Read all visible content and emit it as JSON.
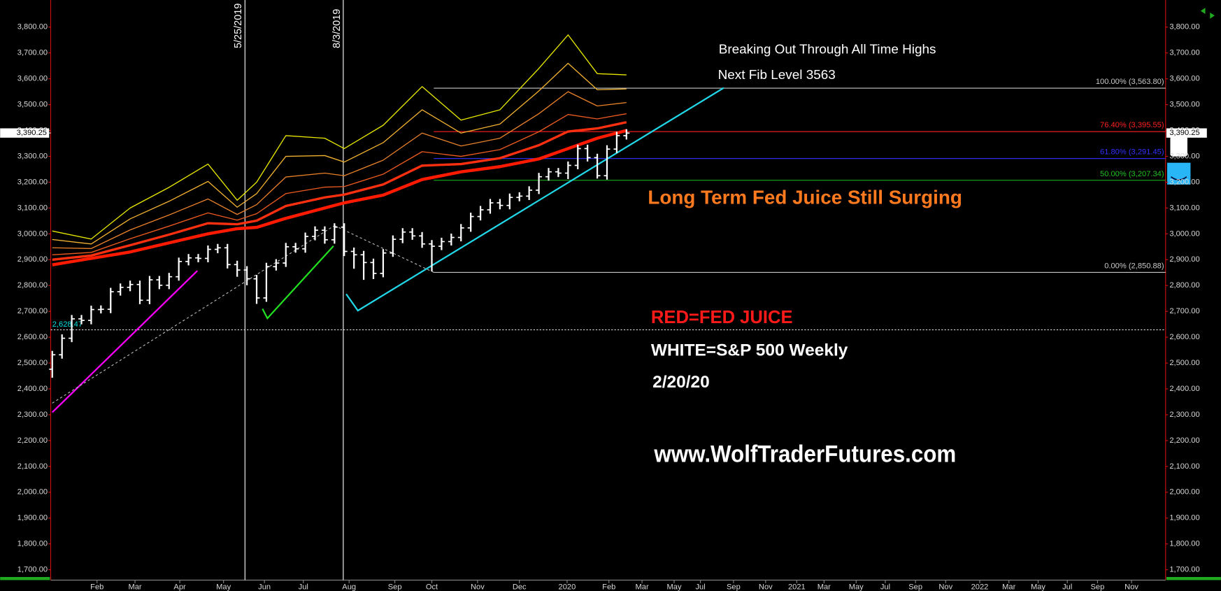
{
  "chart_data": {
    "type": "ohlc",
    "bar_color": "#ffffff",
    "x": [
      0,
      1,
      2,
      3,
      4,
      5,
      6,
      7,
      8,
      9,
      10,
      11,
      12,
      13,
      14,
      15,
      16,
      17,
      18,
      19,
      20,
      21,
      22,
      23,
      24,
      25,
      26,
      27,
      28,
      29,
      30,
      31,
      32,
      33,
      34,
      35,
      36,
      37,
      38,
      39,
      40,
      41,
      42,
      43,
      44,
      45,
      46,
      47,
      48,
      49,
      50,
      51,
      52,
      53,
      54,
      55,
      56,
      57,
      58,
      59
    ],
    "open": [
      2476,
      2532,
      2596,
      2671,
      2665,
      2707,
      2708,
      2776,
      2793,
      2804,
      2743,
      2822,
      2801,
      2834,
      2893,
      2907,
      2905,
      2940,
      2946,
      2881,
      2860,
      2826,
      2752,
      2873,
      2887,
      2950,
      2942,
      2990,
      3014,
      2977,
      3026,
      2932,
      2919,
      2889,
      2847,
      2926,
      2979,
      3007,
      2992,
      2961,
      2952,
      2970,
      2986,
      3023,
      3067,
      3093,
      3120,
      3110,
      3141,
      3146,
      3169,
      3221,
      3240,
      3235,
      3265,
      3330,
      3295,
      3225,
      3328,
      3380
    ],
    "high": [
      2547,
      2611,
      2686,
      2686,
      2722,
      2723,
      2791,
      2808,
      2819,
      2819,
      2837,
      2837,
      2849,
      2908,
      2922,
      2922,
      2955,
      2961,
      2961,
      2896,
      2875,
      2841,
      2888,
      2902,
      2965,
      2965,
      3005,
      3029,
      3029,
      3041,
      3041,
      2947,
      2934,
      2904,
      2941,
      2994,
      3022,
      3022,
      3007,
      2976,
      2985,
      3001,
      3038,
      3082,
      3108,
      3135,
      3135,
      3156,
      3161,
      3184,
      3236,
      3255,
      3255,
      3280,
      3345,
      3345,
      3310,
      3343,
      3395,
      3405
    ],
    "low": [
      2443,
      2517,
      2581,
      2650,
      2650,
      2692,
      2693,
      2761,
      2778,
      2728,
      2728,
      2786,
      2786,
      2819,
      2878,
      2890,
      2890,
      2925,
      2866,
      2834,
      2801,
      2729,
      2737,
      2858,
      2872,
      2927,
      2927,
      2975,
      2962,
      2962,
      2914,
      2865,
      2822,
      2825,
      2832,
      2911,
      2964,
      2977,
      2946,
      2855,
      2937,
      2955,
      2971,
      3008,
      3052,
      3078,
      3095,
      3095,
      3126,
      3131,
      3154,
      3206,
      3220,
      3212,
      3250,
      3280,
      3214,
      3210,
      3313,
      3365
    ],
    "close": [
      2532,
      2596,
      2671,
      2665,
      2707,
      2708,
      2776,
      2793,
      2804,
      2743,
      2822,
      2801,
      2834,
      2893,
      2907,
      2905,
      2940,
      2946,
      2881,
      2860,
      2826,
      2752,
      2873,
      2887,
      2950,
      2942,
      2990,
      3014,
      2977,
      3026,
      2932,
      2919,
      2889,
      2847,
      2926,
      2979,
      3007,
      2992,
      2961,
      2952,
      2970,
      2986,
      3023,
      3067,
      3093,
      3120,
      3110,
      3141,
      3146,
      3169,
      3221,
      3240,
      3235,
      3265,
      3330,
      3295,
      3225,
      3328,
      3380,
      3390
    ],
    "xlim": [
      -0.16,
      114.4
    ],
    "ylim": [
      1660,
      3905
    ],
    "xticks": [
      {
        "value": 4.6,
        "label": "Feb"
      },
      {
        "value": 8.5,
        "label": "Mar"
      },
      {
        "value": 13.1,
        "label": "Apr"
      },
      {
        "value": 17.6,
        "label": "May"
      },
      {
        "value": 21.8,
        "label": "Jun"
      },
      {
        "value": 25.8,
        "label": "Jul"
      },
      {
        "value": 30.5,
        "label": "Aug"
      },
      {
        "value": 35.2,
        "label": "Sep"
      },
      {
        "value": 39,
        "label": "Oct"
      },
      {
        "value": 43.7,
        "label": "Nov"
      },
      {
        "value": 48,
        "label": "Dec"
      },
      {
        "value": 52.9,
        "label": "2020"
      },
      {
        "value": 57.2,
        "label": "Feb"
      },
      {
        "value": 60.6,
        "label": "Mar"
      },
      {
        "value": 63.9,
        "label": "May"
      },
      {
        "value": 66.6,
        "label": "Jul"
      },
      {
        "value": 70,
        "label": "Sep"
      },
      {
        "value": 73.3,
        "label": "Nov"
      },
      {
        "value": 76.5,
        "label": "2021"
      },
      {
        "value": 79.3,
        "label": "Mar"
      },
      {
        "value": 82.6,
        "label": "May"
      },
      {
        "value": 85.6,
        "label": "Jul"
      },
      {
        "value": 88.7,
        "label": "Sep"
      },
      {
        "value": 91.8,
        "label": "Nov"
      },
      {
        "value": 95.3,
        "label": "2022"
      },
      {
        "value": 98.3,
        "label": "Mar"
      },
      {
        "value": 101.3,
        "label": "May"
      },
      {
        "value": 104.3,
        "label": "Jul"
      },
      {
        "value": 107.4,
        "label": "Sep"
      },
      {
        "value": 110.9,
        "label": "Nov"
      }
    ],
    "yticks": [
      {
        "value": 1700,
        "label": "1,700.00"
      },
      {
        "value": 1800,
        "label": "1,800.00"
      },
      {
        "value": 1900,
        "label": "1,900.00"
      },
      {
        "value": 2000,
        "label": "2,000.00"
      },
      {
        "value": 2100,
        "label": "2,100.00"
      },
      {
        "value": 2200,
        "label": "2,200.00"
      },
      {
        "value": 2300,
        "label": "2,300.00"
      },
      {
        "value": 2400,
        "label": "2,400.00"
      },
      {
        "value": 2500,
        "label": "2,500.00"
      },
      {
        "value": 2600,
        "label": "2,600.00"
      },
      {
        "value": 2700,
        "label": "2,700.00"
      },
      {
        "value": 2800,
        "label": "2,800.00"
      },
      {
        "value": 2900,
        "label": "2,900.00"
      },
      {
        "value": 3000,
        "label": "3,000.00"
      },
      {
        "value": 3100,
        "label": "3,100.00"
      },
      {
        "value": 3200,
        "label": "3,200.00"
      },
      {
        "value": 3300,
        "label": "3,300.00"
      },
      {
        "value": 3400,
        "label": "3,400.00"
      },
      {
        "value": 3500,
        "label": "3,500.00"
      },
      {
        "value": 3600,
        "label": "3,600.00"
      },
      {
        "value": 3700,
        "label": "3,700.00"
      },
      {
        "value": 3800,
        "label": "3,800.00"
      }
    ],
    "ribbon": {
      "x": [
        0,
        4,
        8,
        12,
        16,
        19,
        21,
        24,
        28,
        30,
        34,
        38,
        42,
        46,
        50,
        53,
        56,
        59
      ],
      "series": [
        {
          "color": "#e6e600",
          "values": [
            3011,
            2980,
            3100,
            3180,
            3270,
            3130,
            3200,
            3380,
            3370,
            3330,
            3420,
            3570,
            3440,
            3480,
            3640,
            3770,
            3620,
            3615
          ]
        },
        {
          "color": "#f0b030",
          "values": [
            2978,
            2961,
            3058,
            3126,
            3203,
            3103,
            3156,
            3300,
            3303,
            3278,
            3353,
            3480,
            3390,
            3425,
            3553,
            3660,
            3558,
            3561
          ]
        },
        {
          "color": "#e8802a",
          "values": [
            2946,
            2943,
            3015,
            3073,
            3135,
            3075,
            3113,
            3220,
            3235,
            3225,
            3285,
            3390,
            3340,
            3370,
            3465,
            3550,
            3495,
            3508
          ]
        },
        {
          "color": "#ec5a20",
          "values": [
            2919,
            2928,
            2981,
            3030,
            3081,
            3053,
            3078,
            3156,
            3181,
            3183,
            3231,
            3318,
            3300,
            3326,
            3395,
            3462,
            3445,
            3465
          ]
        },
        {
          "color": "#ff3010",
          "values": [
            2900,
            2916,
            2956,
            2997,
            3041,
            3037,
            3051,
            3108,
            3141,
            3152,
            3191,
            3264,
            3270,
            3293,
            3343,
            3396,
            3408,
            3432
          ]
        },
        {
          "color": "#ff1a00",
          "values": [
            2880,
            2905,
            2930,
            2965,
            3000,
            3020,
            3025,
            3060,
            3100,
            3120,
            3150,
            3210,
            3240,
            3260,
            3290,
            3330,
            3370,
            3400
          ]
        }
      ]
    },
    "fib_start_x": 39.2,
    "fib_levels": [
      {
        "value": 3563.8,
        "label": "100.00% (3,563.80)",
        "color": "#c8c8c8"
      },
      {
        "value": 3395.55,
        "label": "76.40% (3,395.55)",
        "color": "#ff2020"
      },
      {
        "value": 3291.45,
        "label": "61.80% (3,291.45)",
        "color": "#3030ff"
      },
      {
        "value": 3207.34,
        "label": "50.00% (3,207.34)",
        "color": "#20c020"
      },
      {
        "value": 2850.88,
        "label": "0.00% (2,850.88)",
        "color": "#c8c8c8"
      }
    ],
    "events": [
      {
        "x": 19.8,
        "label": "5/25/2019"
      },
      {
        "x": 29.9,
        "label": "8/3/2019"
      }
    ],
    "reference_line": {
      "value": 2628.47,
      "label": "2,628.47",
      "color": "#00e0e0"
    },
    "last_price": {
      "value": 3390.25,
      "label": "3,390.25"
    },
    "trendlines": [
      {
        "color": "#ff00ff",
        "dashed": false,
        "x": [
          0,
          14.9
        ],
        "y": [
          2309,
          2857
        ]
      },
      {
        "color": "#20e020",
        "dashed": false,
        "x": [
          21.6,
          22.1,
          28.9
        ],
        "y": [
          2710,
          2673,
          2953
        ]
      },
      {
        "color": "#20d8e8",
        "dashed": false,
        "x": [
          30.2,
          31.4,
          69
        ],
        "y": [
          2767,
          2703,
          3565
        ]
      },
      {
        "color": "#bbbbbb",
        "dashed": true,
        "x": [
          0,
          29
        ],
        "y": [
          2345,
          3032
        ]
      },
      {
        "color": "#bbbbbb",
        "dashed": true,
        "x": [
          29,
          39.2
        ],
        "y": [
          3032,
          2851
        ]
      }
    ],
    "annotations": [
      {
        "text": "Breaking Out Through All Time Highs",
        "color": "#ffffff"
      },
      {
        "text": "Next Fib Level 3563",
        "color": "#ffffff"
      },
      {
        "text": "Long Term Fed Juice Still Surging",
        "color": "#ff7a1f"
      },
      {
        "text": "RED=FED JUICE",
        "color": "#ff1a1a"
      },
      {
        "text": "WHITE=S&P 500 Weekly",
        "color": "#ffffff"
      },
      {
        "text": "2/20/20",
        "color": "#ffffff"
      },
      {
        "text": "www.WolfTraderFutures.com",
        "color": "#ffffff"
      }
    ]
  }
}
